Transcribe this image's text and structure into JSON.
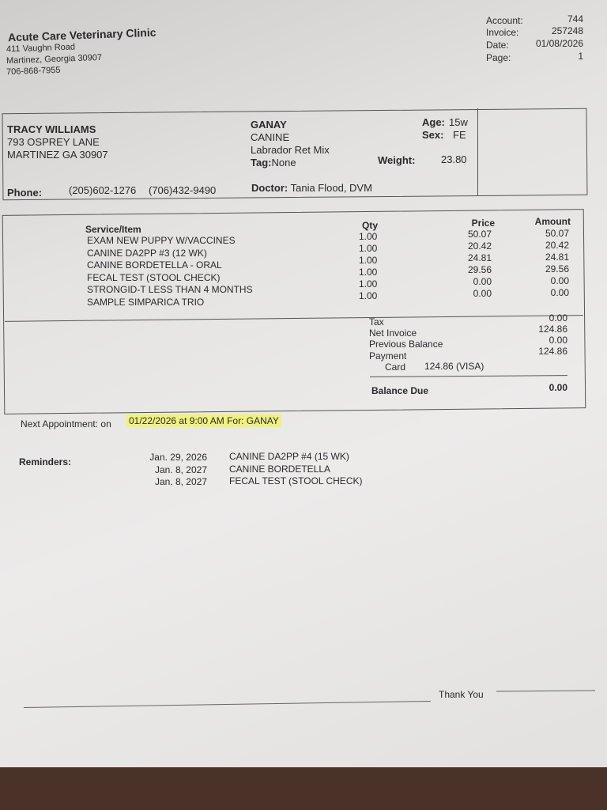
{
  "clinic": {
    "name": "Acute Care Veterinary Clinic",
    "street": "411 Vaughn Road",
    "city": "Martinez, Georgia   30907",
    "phone": "706-868-7955"
  },
  "meta": {
    "account_label": "Account:",
    "account": "744",
    "invoice_label": "Invoice:",
    "invoice": "257248",
    "date_label": "Date:",
    "date": "01/08/2026",
    "page_label": "Page:",
    "page": "1"
  },
  "client": {
    "name": "TRACY WILLIAMS",
    "street": "793 OSPREY LANE",
    "city": "MARTINEZ  GA  30907",
    "phone_label": "Phone:",
    "phone1": "(205)602-1276",
    "phone2": "(706)432-9490"
  },
  "patient": {
    "name": "GANAY",
    "species": "CANINE",
    "breed": "Labrador Ret Mix",
    "tag_label": "Tag:",
    "tag": "None",
    "age_label": "Age:",
    "age": "15w",
    "sex_label": "Sex:",
    "sex": "FE",
    "weight_label": "Weight:",
    "weight": "23.80",
    "doctor_label": "Doctor:",
    "doctor": "Tania Flood, DVM"
  },
  "items": {
    "headers": {
      "service": "Service/Item",
      "qty": "Qty",
      "price": "Price",
      "amount": "Amount"
    },
    "rows": [
      {
        "service": "EXAM NEW PUPPY W/VACCINES",
        "qty": "1.00",
        "price": "50.07",
        "amount": "50.07"
      },
      {
        "service": "CANINE DA2PP #3 (12 WK)",
        "qty": "1.00",
        "price": "20.42",
        "amount": "20.42"
      },
      {
        "service": "CANINE BORDETELLA - ORAL",
        "qty": "1.00",
        "price": "24.81",
        "amount": "24.81"
      },
      {
        "service": "FECAL TEST (STOOL CHECK)",
        "qty": "1.00",
        "price": "29.56",
        "amount": "29.56"
      },
      {
        "service": "STRONGID-T LESS THAN 4 MONTHS",
        "qty": "1.00",
        "price": "0.00",
        "amount": "0.00"
      },
      {
        "service": "SAMPLE  SIMPARICA TRIO",
        "qty": "1.00",
        "price": "0.00",
        "amount": "0.00"
      }
    ]
  },
  "totals": {
    "tax_label": "Tax",
    "tax": "0.00",
    "net_label": "Net Invoice",
    "net": "124.86",
    "prev_label": "Previous Balance",
    "prev": "0.00",
    "payment_label": "Payment",
    "payment": "124.86",
    "card_label": "Card",
    "card": "124.86  (VISA)",
    "balance_label": "Balance Due",
    "balance": "0.00"
  },
  "appointment": {
    "label": "Next Appointment:  on",
    "date": "01/22/2026  at 9:00 AM  For: GANAY",
    "highlight_color": "#f0f27a"
  },
  "reminders": {
    "label": "Reminders:",
    "rows": [
      {
        "date": "Jan. 29, 2026",
        "item": "CANINE DA2PP #4 (15 WK)"
      },
      {
        "date": "Jan. 8, 2027",
        "item": "CANINE BORDETELLA"
      },
      {
        "date": "Jan. 8, 2027",
        "item": "FECAL TEST (STOOL CHECK)"
      }
    ]
  },
  "footer": {
    "thanks": "Thank You"
  }
}
